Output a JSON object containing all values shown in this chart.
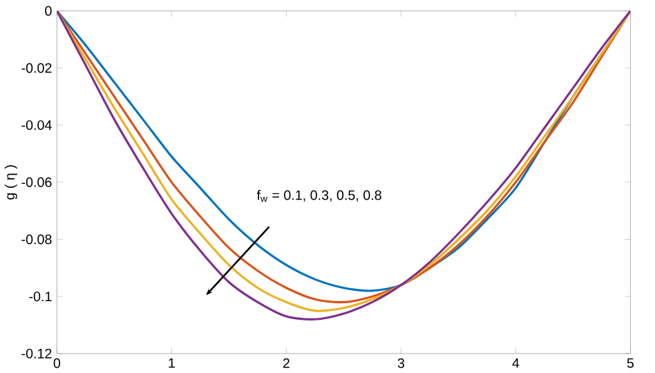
{
  "chart_data": {
    "type": "line",
    "ylabel": "g ( η )",
    "annotations": [
      "f$_{w}$ = 0.1, 0.3, 0.5, 0.8"
    ],
    "x": [
      0,
      0.25,
      0.5,
      0.75,
      1,
      1.25,
      1.5,
      1.75,
      2,
      2.25,
      2.5,
      2.75,
      3,
      3.25,
      3.5,
      3.75,
      4,
      4.25,
      4.5,
      4.75,
      5
    ],
    "series": [
      {
        "color": "#0072bd",
        "values": [
          0,
          -0.012,
          -0.025,
          -0.038,
          -0.051,
          -0.062,
          -0.073,
          -0.082,
          -0.089,
          -0.094,
          -0.097,
          -0.098,
          -0.096,
          -0.09,
          -0.083,
          -0.073,
          -0.062,
          -0.046,
          -0.03,
          -0.015,
          0
        ]
      },
      {
        "color": "#d95319",
        "values": [
          0,
          -0.015,
          -0.03,
          -0.045,
          -0.06,
          -0.072,
          -0.083,
          -0.091,
          -0.097,
          -0.101,
          -0.102,
          -0.1,
          -0.096,
          -0.09,
          -0.082,
          -0.072,
          -0.06,
          -0.046,
          -0.032,
          -0.016,
          0
        ]
      },
      {
        "color": "#edb120",
        "values": [
          0,
          -0.017,
          -0.034,
          -0.05,
          -0.066,
          -0.078,
          -0.089,
          -0.097,
          -0.102,
          -0.105,
          -0.104,
          -0.101,
          -0.096,
          -0.089,
          -0.08,
          -0.07,
          -0.058,
          -0.044,
          -0.03,
          -0.015,
          0
        ]
      },
      {
        "color": "#7e2f8e",
        "values": [
          0,
          -0.019,
          -0.038,
          -0.055,
          -0.071,
          -0.084,
          -0.095,
          -0.102,
          -0.107,
          -0.108,
          -0.106,
          -0.102,
          -0.096,
          -0.088,
          -0.078,
          -0.067,
          -0.055,
          -0.041,
          -0.027,
          -0.013,
          0
        ]
      }
    ],
    "xlim": [
      0,
      5
    ],
    "ylim": [
      -0.12,
      0
    ],
    "xticks": [
      0,
      1,
      2,
      3,
      4,
      5
    ],
    "yticks": [
      -0.12,
      -0.1,
      -0.08,
      -0.06,
      -0.04,
      -0.02,
      0
    ],
    "grid": false,
    "marker": "none",
    "line_style": "solid"
  }
}
